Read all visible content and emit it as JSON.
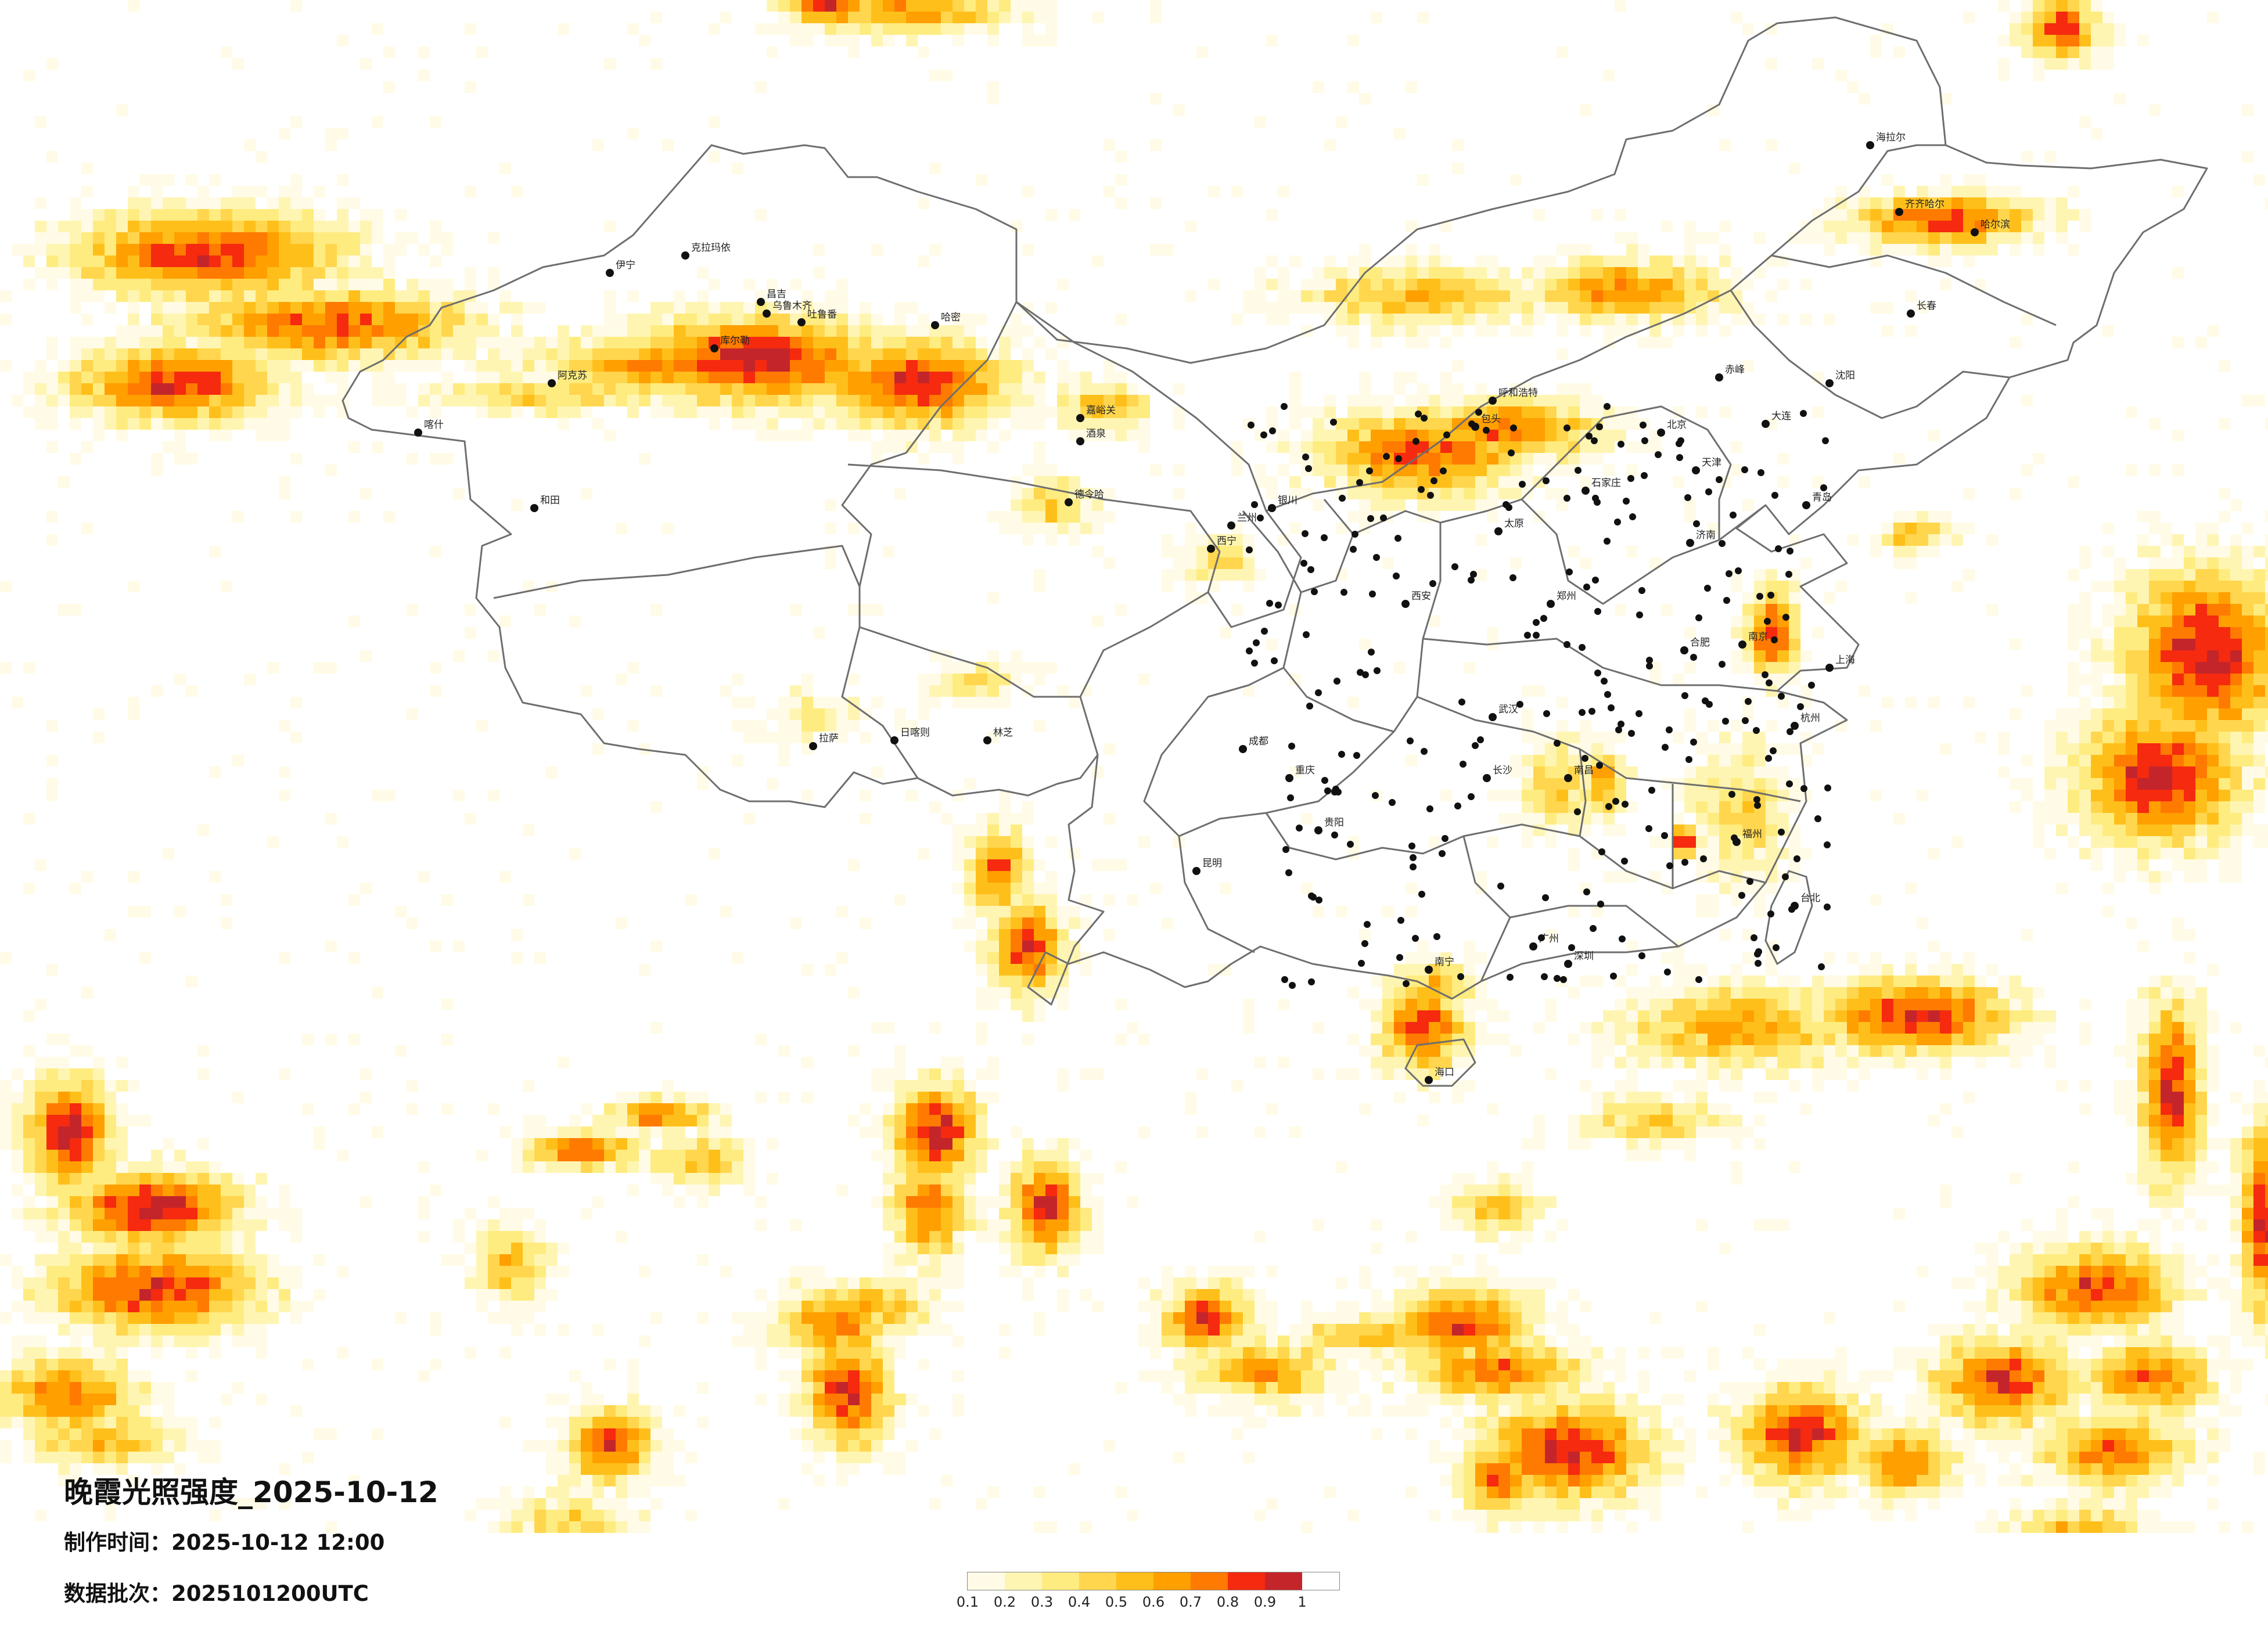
{
  "title": "晚霞光照强度_2025-10-12",
  "made_time_label": "制作时间：",
  "made_time_value": "2025-10-12 12:00",
  "batch_label": "数据批次：",
  "batch_value": "2025101200UTC",
  "legend": {
    "ticks": [
      "0.1",
      "0.2",
      "0.3",
      "0.4",
      "0.5",
      "0.6",
      "0.7",
      "0.8",
      "0.9",
      "1"
    ],
    "colors": [
      "#fffbe6",
      "#fff5b3",
      "#ffec80",
      "#ffd64d",
      "#ffbf1a",
      "#ff9f00",
      "#ff7a00",
      "#f52a0f",
      "#c4252b"
    ]
  },
  "cities": [
    "克拉玛依",
    "伊宁",
    "昌吉",
    "乌鲁木齐",
    "吐鲁番",
    "哈密",
    "阿克苏",
    "喀什",
    "和田",
    "库尔勒",
    "嘉峪关",
    "酒泉",
    "德令哈",
    "西宁",
    "兰州",
    "银川",
    "呼和浩特",
    "包头",
    "北京",
    "天津",
    "石家庄",
    "太原",
    "济南",
    "青岛",
    "郑州",
    "西安",
    "成都",
    "重庆",
    "武汉",
    "长沙",
    "南昌",
    "合肥",
    "南京",
    "上海",
    "杭州",
    "福州",
    "广州",
    "深圳",
    "南宁",
    "贵阳",
    "昆明",
    "拉萨",
    "日喀则",
    "林芝",
    "海口",
    "沈阳",
    "长春",
    "哈尔滨",
    "齐齐哈尔",
    "大连",
    "台北",
    "赤峰",
    "海拉尔"
  ]
}
